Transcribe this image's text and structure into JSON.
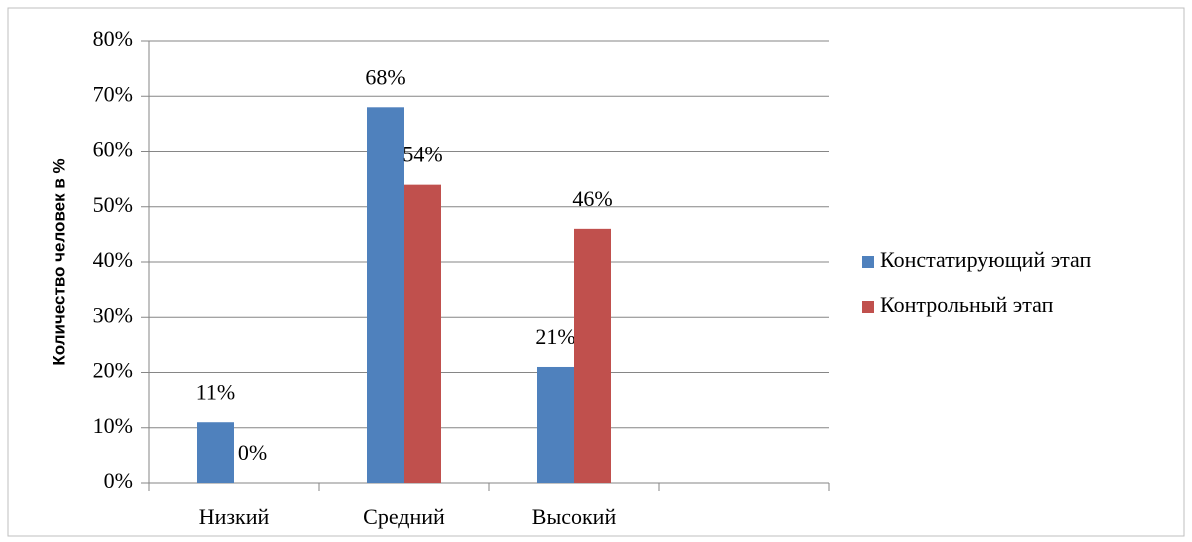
{
  "chart_data": {
    "type": "bar",
    "y_label": "Количество человек в %",
    "categories": [
      "Низкий",
      "Средний",
      "Высокий",
      null
    ],
    "series": [
      {
        "name": "Констатирующий этап",
        "color": "#4f81bd",
        "values": [
          11,
          68,
          21,
          null
        ],
        "value_labels": [
          "11%",
          "68%",
          "21%",
          null
        ]
      },
      {
        "name": "Контрольный этап",
        "color": "#c0504d",
        "values": [
          0,
          54,
          46,
          null
        ],
        "value_labels": [
          "0%",
          "54%",
          "46%",
          null
        ]
      }
    ],
    "ylim": [
      0,
      80
    ],
    "yticks": [
      {
        "value": 0,
        "label": "0%"
      },
      {
        "value": 10,
        "label": "10%"
      },
      {
        "value": 20,
        "label": "20%"
      },
      {
        "value": 30,
        "label": "30%"
      },
      {
        "value": 40,
        "label": "40%"
      },
      {
        "value": 50,
        "label": "50%"
      },
      {
        "value": 60,
        "label": "60%"
      },
      {
        "value": 70,
        "label": "70%"
      },
      {
        "value": 80,
        "label": "80%"
      }
    ],
    "grid": true,
    "legend": "right"
  }
}
